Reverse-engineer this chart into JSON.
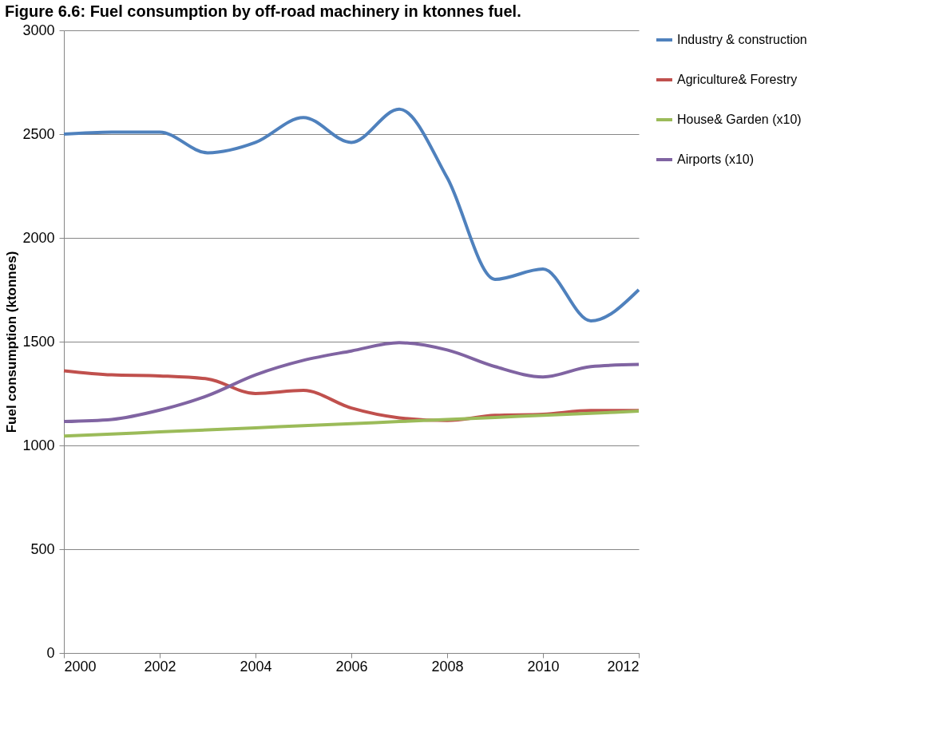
{
  "chart_data": {
    "type": "line",
    "title": "Figure 6.6: Fuel consumption by off-road machinery in ktonnes fuel.",
    "ylabel": "Fuel consumption (ktonnes)",
    "x": [
      2000,
      2001,
      2002,
      2003,
      2004,
      2005,
      2006,
      2007,
      2008,
      2009,
      2010,
      2011,
      2012
    ],
    "series": [
      {
        "name": "Industry & construction",
        "color": "#4f81bd",
        "values": [
          2500,
          2510,
          2510,
          2410,
          2460,
          2580,
          2460,
          2620,
          2290,
          1800,
          1850,
          1600,
          1750
        ]
      },
      {
        "name": "Agriculture& Forestry",
        "color": "#c0504d",
        "values": [
          1360,
          1340,
          1335,
          1320,
          1250,
          1265,
          1180,
          1133,
          1120,
          1145,
          1150,
          1168,
          1168
        ]
      },
      {
        "name": "House& Garden (x10)",
        "color": "#9bbb59",
        "values": [
          1045,
          1055,
          1065,
          1075,
          1085,
          1095,
          1105,
          1115,
          1125,
          1135,
          1145,
          1155,
          1165
        ]
      },
      {
        "name": "Airports (x10)",
        "color": "#8064a2",
        "values": [
          1115,
          1125,
          1170,
          1240,
          1340,
          1410,
          1455,
          1495,
          1460,
          1380,
          1330,
          1380,
          1390
        ]
      }
    ],
    "xlim": [
      2000,
      2012
    ],
    "xticks": [
      2000,
      2002,
      2004,
      2006,
      2008,
      2010,
      2012
    ],
    "ylim": [
      0,
      3000
    ],
    "yticks": [
      0,
      500,
      1000,
      1500,
      2000,
      2500,
      3000
    ],
    "grid": "y",
    "legend": "right",
    "marker": "none",
    "line_style": "solid"
  }
}
